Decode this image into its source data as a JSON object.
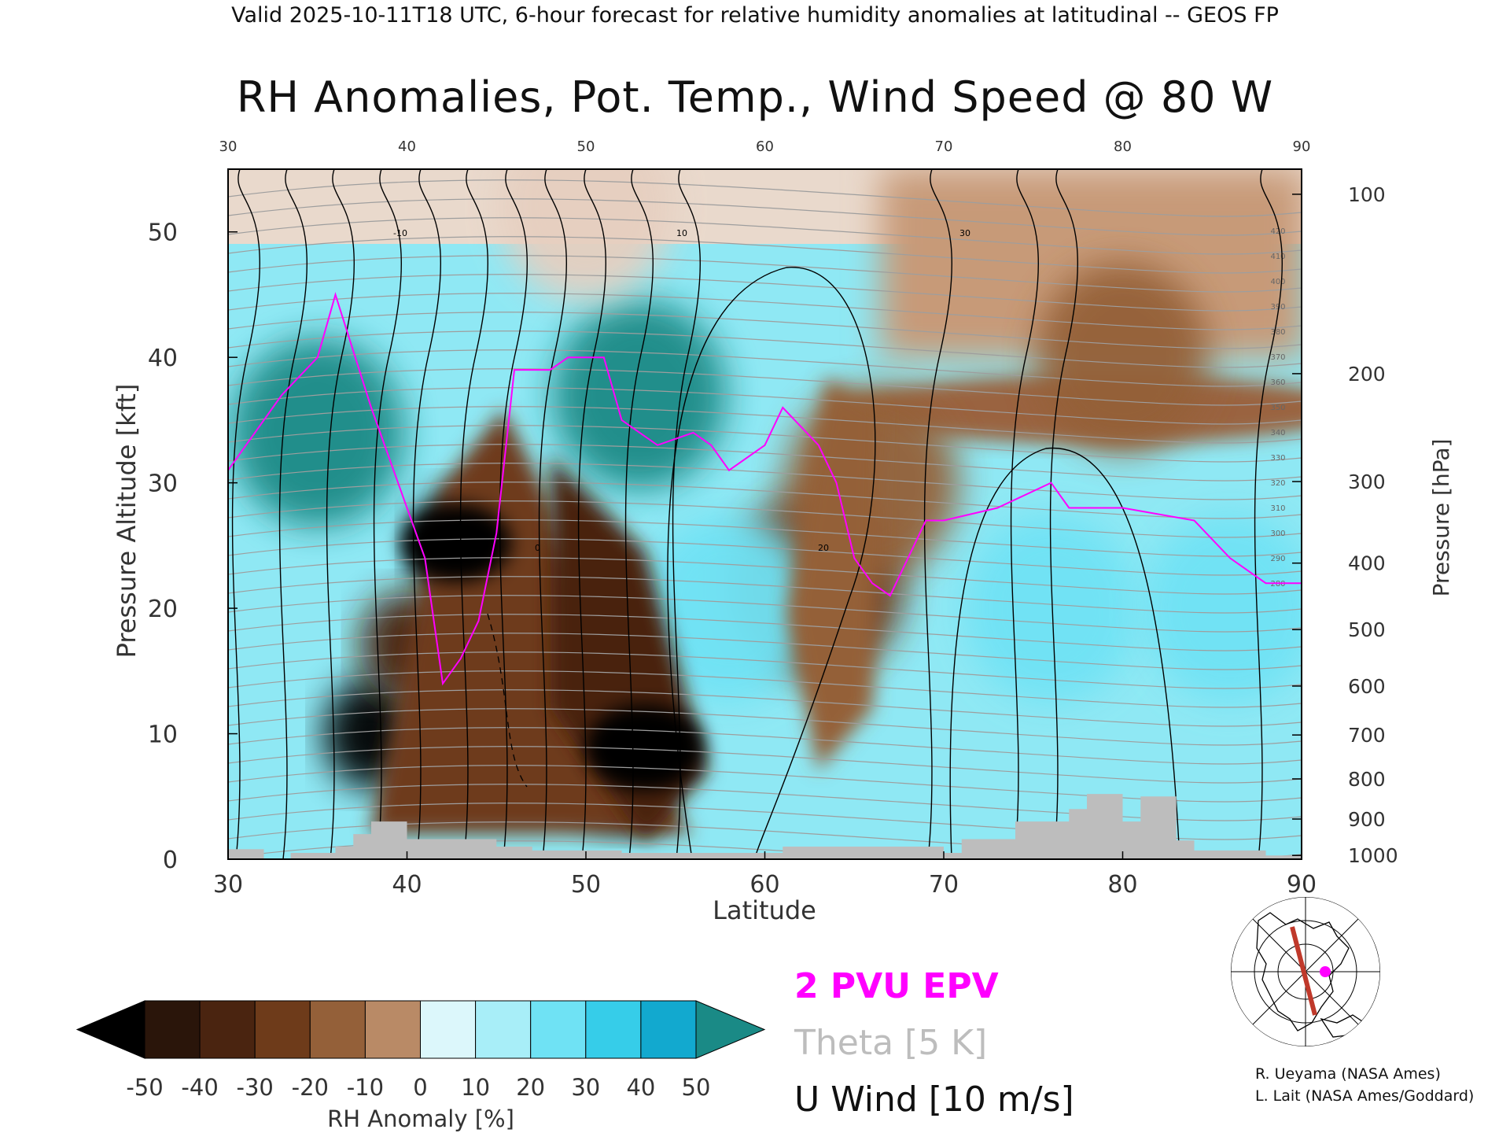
{
  "header": "Valid 2025-10-11T18 UTC, 6-hour forecast for relative humidity anomalies at latitudinal -- GEOS FP",
  "chart_data": {
    "type": "heatmap",
    "title": "RH Anomalies, Pot. Temp., Wind Speed @ 80 W",
    "xlabel": "Latitude",
    "ylabel_left": "Pressure Altitude [kft]",
    "ylabel_right": "Pressure [hPa]",
    "xlim": [
      30,
      90
    ],
    "ylim": [
      0,
      55
    ],
    "x_ticks": [
      30,
      40,
      50,
      60,
      70,
      80,
      90
    ],
    "y_ticks": [
      0,
      10,
      20,
      30,
      40,
      50
    ],
    "pressure_ticks": [
      {
        "label": "100",
        "kft": 53.0
      },
      {
        "label": "200",
        "kft": 38.7
      },
      {
        "label": "300",
        "kft": 30.1
      },
      {
        "label": "400",
        "kft": 23.6
      },
      {
        "label": "500",
        "kft": 18.3
      },
      {
        "label": "600",
        "kft": 13.8
      },
      {
        "label": "700",
        "kft": 9.9
      },
      {
        "label": "800",
        "kft": 6.4
      },
      {
        "label": "900",
        "kft": 3.2
      },
      {
        "label": "1000",
        "kft": 0.3
      }
    ],
    "colorbar": {
      "label": "RH Anomaly [%]",
      "ticks": [
        "-50",
        "-40",
        "-30",
        "-20",
        "-10",
        "0",
        "10",
        "20",
        "30",
        "40",
        "50"
      ],
      "colors": [
        "#2a150a",
        "#4a2410",
        "#6e3b1a",
        "#946039",
        "#b98a66",
        "#e6cfc0",
        "#dcf7fb",
        "#a8eef8",
        "#6fe2f4",
        "#36cde9",
        "#12a9cf"
      ],
      "under_color": "#000000",
      "over_color": "#1a8a86"
    },
    "rh_anomaly_features": [
      {
        "lat": 43,
        "kft": 25,
        "value": -50
      },
      {
        "lat": 38,
        "kft": 10,
        "value": -50
      },
      {
        "lat": 40,
        "kft": 17,
        "value": -45
      },
      {
        "lat": 52,
        "kft": 7,
        "value": -50
      },
      {
        "lat": 47,
        "kft": 20,
        "value": -40
      },
      {
        "lat": 63,
        "kft": 22,
        "value": -30
      },
      {
        "lat": 66,
        "kft": 30,
        "value": -20
      },
      {
        "lat": 35,
        "kft": 34,
        "value": 50
      },
      {
        "lat": 53,
        "kft": 37,
        "value": 50
      },
      {
        "lat": 58,
        "kft": 20,
        "value": 30
      },
      {
        "lat": 76,
        "kft": 20,
        "value": 30
      },
      {
        "lat": 86,
        "kft": 20,
        "value": 25
      },
      {
        "lat": 80,
        "kft": 40,
        "value": -20
      },
      {
        "lat": 50,
        "kft": 52,
        "value": 0
      }
    ],
    "epv_2pvu_kft": [
      [
        30,
        31
      ],
      [
        31,
        33
      ],
      [
        33,
        37
      ],
      [
        35,
        40
      ],
      [
        36,
        45
      ],
      [
        38,
        36
      ],
      [
        40,
        28
      ],
      [
        41,
        24
      ],
      [
        42,
        14
      ],
      [
        43,
        16
      ],
      [
        44,
        19
      ],
      [
        45,
        26
      ],
      [
        46,
        39
      ],
      [
        48,
        39
      ],
      [
        49,
        40
      ],
      [
        51,
        40
      ],
      [
        52,
        35
      ],
      [
        54,
        33
      ],
      [
        56,
        34
      ],
      [
        57,
        33
      ],
      [
        58,
        31
      ],
      [
        60,
        33
      ],
      [
        61,
        36
      ],
      [
        63,
        33
      ],
      [
        64,
        30
      ],
      [
        65,
        24
      ],
      [
        66,
        22
      ],
      [
        67,
        21
      ],
      [
        69,
        27
      ],
      [
        70,
        27
      ],
      [
        73,
        28
      ],
      [
        76,
        30
      ],
      [
        77,
        28
      ],
      [
        80,
        28
      ],
      [
        84,
        27
      ],
      [
        86,
        24
      ],
      [
        88,
        22
      ],
      [
        90,
        22
      ]
    ],
    "theta_labels": [
      "420",
      "410",
      "400",
      "390",
      "380",
      "370",
      "360",
      "350",
      "340",
      "330",
      "320",
      "310",
      "300",
      "290",
      "280"
    ],
    "u_wind_labels": [
      "-10",
      "0",
      "10",
      "20",
      "30"
    ],
    "legend": [
      "2 PVU EPV",
      "Theta [5 K]",
      "U Wind [10 m/s]"
    ]
  },
  "credits": [
    "R. Ueyama (NASA Ames)",
    "L. Lait (NASA Ames/Goddard)"
  ],
  "colors": {
    "epv": "#ff00ff",
    "theta": "#9e9e9e",
    "wind": "#000000",
    "terrain": "#bdbdbd",
    "map_path": "#c0392b",
    "map_point": "#ff00ff"
  }
}
